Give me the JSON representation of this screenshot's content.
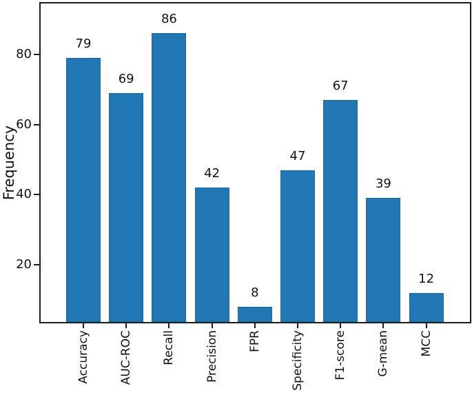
{
  "chart_data": {
    "type": "bar",
    "categories": [
      "Accuracy",
      "AUC-ROC",
      "Recall",
      "Precision",
      "FPR",
      "Specificity",
      "F1-score",
      "G-mean",
      "MCC"
    ],
    "values": [
      79,
      69,
      86,
      42,
      8,
      47,
      67,
      39,
      12
    ],
    "title": "",
    "xlabel": "",
    "ylabel": "Frequency",
    "ylim": [
      3.7,
      94.5
    ],
    "yticks": [
      20,
      40,
      60,
      80
    ],
    "value_labels": [
      79,
      69,
      86,
      42,
      8,
      47,
      67,
      39,
      12
    ],
    "bar_color": "#2077b4",
    "bar_edge_color": "#1a699f",
    "axis_color": "#1c1c1c",
    "text_color": "#111111",
    "grid": false,
    "legend": "none"
  }
}
